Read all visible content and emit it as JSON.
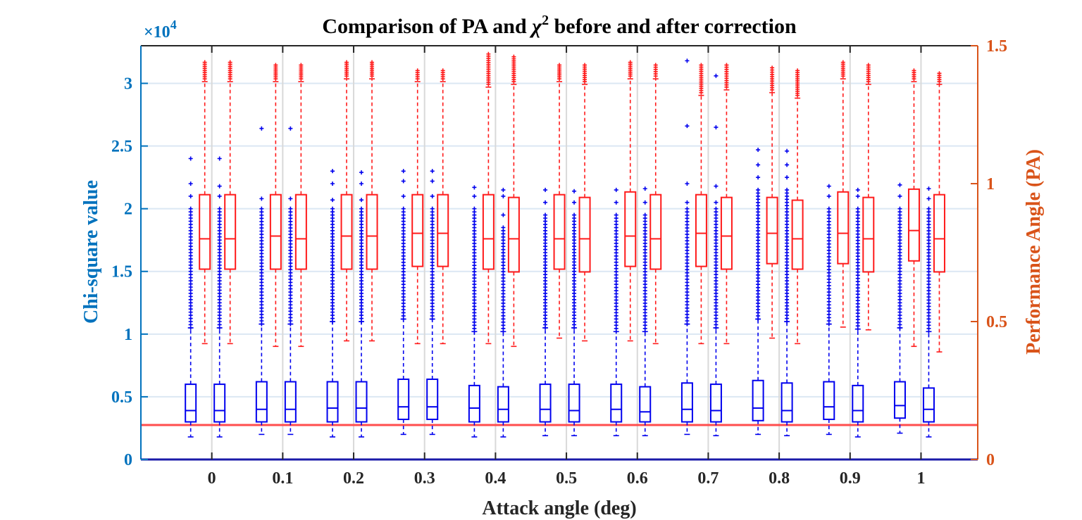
{
  "chart_data": {
    "type": "box",
    "title": "Comparison of PA and χ² before and after correction",
    "title_parts": {
      "main": "Comparison of PA and ",
      "symbol": "χ",
      "superscript": "2",
      "rest": " before and after correction"
    },
    "xlabel": "Attack angle (deg)",
    "ylabel_left": "Chi-square value",
    "ylabel_right": "Performance Angle (PA)",
    "left_exponent": "×10",
    "left_exponent_power": "4",
    "categories": [
      "0",
      "0.1",
      "0.2",
      "0.3",
      "0.4",
      "0.5",
      "0.6",
      "0.7",
      "0.8",
      "0.9",
      "1"
    ],
    "x_values": [
      0,
      0.1,
      0.2,
      0.3,
      0.4,
      0.5,
      0.6,
      0.7,
      0.8,
      0.9,
      1
    ],
    "xlim": [
      -0.1,
      1.08
    ],
    "ylim_left": [
      0,
      3.3
    ],
    "ylim_right": [
      0,
      1.5
    ],
    "left_ticks": [
      0,
      0.5,
      1,
      1.5,
      2,
      2.5,
      3
    ],
    "left_tick_labels": [
      "0",
      "0.5",
      "1",
      "1.5",
      "2",
      "2.5",
      "3"
    ],
    "right_ticks": [
      0,
      0.5,
      1,
      1.5
    ],
    "right_tick_labels": [
      "0",
      "0.5",
      "1",
      "1.5"
    ],
    "grid": true,
    "colors": {
      "chi": "#0000ee",
      "pa": "#ff1a1a",
      "left_axis": "#0072bd",
      "right_axis": "#d95319",
      "threshold": "#ff4d4d",
      "grid": "#dbe7f3"
    },
    "threshold_pa": 0.125,
    "chi_series": {
      "name": "Chi-square value",
      "boxes": [
        {
          "x": 0,
          "group": "before",
          "q1": 0.3,
          "med": 0.39,
          "q3": 0.6,
          "wlo": 0.18,
          "whi": 1.05,
          "out_dense": [
            1.05,
            2.0
          ],
          "out_sparse": [
            2.1,
            2.2,
            2.4
          ]
        },
        {
          "x": 0,
          "group": "after",
          "q1": 0.3,
          "med": 0.39,
          "q3": 0.6,
          "wlo": 0.18,
          "whi": 1.05,
          "out_dense": [
            1.05,
            2.0
          ],
          "out_sparse": [
            2.1,
            2.18,
            2.4
          ]
        },
        {
          "x": 0.1,
          "group": "before",
          "q1": 0.3,
          "med": 0.4,
          "q3": 0.62,
          "wlo": 0.2,
          "whi": 1.08,
          "out_dense": [
            1.08,
            2.0
          ],
          "out_sparse": [
            2.08,
            2.64
          ]
        },
        {
          "x": 0.1,
          "group": "after",
          "q1": 0.3,
          "med": 0.4,
          "q3": 0.62,
          "wlo": 0.2,
          "whi": 1.08,
          "out_dense": [
            1.08,
            2.0
          ],
          "out_sparse": [
            2.08,
            2.64
          ]
        },
        {
          "x": 0.2,
          "group": "before",
          "q1": 0.3,
          "med": 0.41,
          "q3": 0.62,
          "wlo": 0.18,
          "whi": 1.1,
          "out_dense": [
            1.1,
            2.0
          ],
          "out_sparse": [
            2.07,
            2.2,
            2.3
          ]
        },
        {
          "x": 0.2,
          "group": "after",
          "q1": 0.3,
          "med": 0.41,
          "q3": 0.62,
          "wlo": 0.18,
          "whi": 1.1,
          "out_dense": [
            1.1,
            2.0
          ],
          "out_sparse": [
            2.07,
            2.2,
            2.29
          ]
        },
        {
          "x": 0.3,
          "group": "before",
          "q1": 0.32,
          "med": 0.42,
          "q3": 0.64,
          "wlo": 0.2,
          "whi": 1.12,
          "out_dense": [
            1.12,
            2.0
          ],
          "out_sparse": [
            2.1,
            2.22,
            2.3
          ]
        },
        {
          "x": 0.3,
          "group": "after",
          "q1": 0.32,
          "med": 0.42,
          "q3": 0.64,
          "wlo": 0.2,
          "whi": 1.12,
          "out_dense": [
            1.12,
            2.0
          ],
          "out_sparse": [
            2.1,
            2.22,
            2.3
          ]
        },
        {
          "x": 0.4,
          "group": "before",
          "q1": 0.3,
          "med": 0.41,
          "q3": 0.59,
          "wlo": 0.18,
          "whi": 1.02,
          "out_dense": [
            1.02,
            2.0
          ],
          "out_sparse": [
            2.1,
            2.17
          ]
        },
        {
          "x": 0.4,
          "group": "after",
          "q1": 0.3,
          "med": 0.4,
          "q3": 0.58,
          "wlo": 0.18,
          "whi": 1.02,
          "out_dense": [
            1.02,
            1.85
          ],
          "out_sparse": [
            1.95,
            2.1,
            2.15
          ]
        },
        {
          "x": 0.5,
          "group": "before",
          "q1": 0.3,
          "med": 0.4,
          "q3": 0.6,
          "wlo": 0.19,
          "whi": 1.05,
          "out_dense": [
            1.05,
            1.95
          ],
          "out_sparse": [
            2.05,
            2.15
          ]
        },
        {
          "x": 0.5,
          "group": "after",
          "q1": 0.3,
          "med": 0.39,
          "q3": 0.6,
          "wlo": 0.19,
          "whi": 1.05,
          "out_dense": [
            1.05,
            1.95
          ],
          "out_sparse": [
            2.05,
            2.14
          ]
        },
        {
          "x": 0.6,
          "group": "before",
          "q1": 0.3,
          "med": 0.4,
          "q3": 0.6,
          "wlo": 0.19,
          "whi": 1.02,
          "out_dense": [
            1.02,
            1.95
          ],
          "out_sparse": [
            2.05,
            2.15
          ]
        },
        {
          "x": 0.6,
          "group": "after",
          "q1": 0.3,
          "med": 0.38,
          "q3": 0.58,
          "wlo": 0.19,
          "whi": 1.02,
          "out_dense": [
            1.02,
            1.95
          ],
          "out_sparse": [
            2.05,
            2.16
          ]
        },
        {
          "x": 0.7,
          "group": "before",
          "q1": 0.3,
          "med": 0.4,
          "q3": 0.61,
          "wlo": 0.2,
          "whi": 1.08,
          "out_dense": [
            1.08,
            2.0
          ],
          "out_sparse": [
            2.05,
            2.2,
            2.66,
            3.18
          ]
        },
        {
          "x": 0.7,
          "group": "after",
          "q1": 0.3,
          "med": 0.39,
          "q3": 0.6,
          "wlo": 0.19,
          "whi": 1.05,
          "out_dense": [
            1.05,
            2.0
          ],
          "out_sparse": [
            2.05,
            2.18,
            2.65,
            3.06
          ]
        },
        {
          "x": 0.8,
          "group": "before",
          "q1": 0.31,
          "med": 0.41,
          "q3": 0.63,
          "wlo": 0.2,
          "whi": 1.12,
          "out_dense": [
            1.12,
            2.15
          ],
          "out_sparse": [
            2.25,
            2.35,
            2.47
          ]
        },
        {
          "x": 0.8,
          "group": "after",
          "q1": 0.3,
          "med": 0.39,
          "q3": 0.61,
          "wlo": 0.19,
          "whi": 1.1,
          "out_dense": [
            1.1,
            2.15
          ],
          "out_sparse": [
            2.25,
            2.35,
            2.46
          ]
        },
        {
          "x": 0.9,
          "group": "before",
          "q1": 0.32,
          "med": 0.42,
          "q3": 0.62,
          "wlo": 0.2,
          "whi": 1.08,
          "out_dense": [
            1.08,
            2.0
          ],
          "out_sparse": [
            2.1,
            2.18
          ]
        },
        {
          "x": 0.9,
          "group": "after",
          "q1": 0.3,
          "med": 0.39,
          "q3": 0.59,
          "wlo": 0.18,
          "whi": 1.04,
          "out_dense": [
            1.04,
            2.0
          ],
          "out_sparse": [
            2.1,
            2.15
          ]
        },
        {
          "x": 1.0,
          "group": "before",
          "q1": 0.33,
          "med": 0.43,
          "q3": 0.62,
          "wlo": 0.21,
          "whi": 1.05,
          "out_dense": [
            1.05,
            2.0
          ],
          "out_sparse": [
            2.1,
            2.19
          ]
        },
        {
          "x": 1.0,
          "group": "after",
          "q1": 0.3,
          "med": 0.4,
          "q3": 0.57,
          "wlo": 0.18,
          "whi": 1.02,
          "out_dense": [
            1.02,
            2.0
          ],
          "out_sparse": [
            2.08,
            2.16
          ]
        }
      ]
    },
    "pa_series": {
      "name": "Performance Angle (PA)",
      "boxes": [
        {
          "x": 0,
          "group": "before",
          "q1": 0.69,
          "med": 0.8,
          "q3": 0.96,
          "wlo": 0.42,
          "whi": 1.37,
          "out_lo": 1.38,
          "out_hi": 1.44
        },
        {
          "x": 0,
          "group": "after",
          "q1": 0.69,
          "med": 0.8,
          "q3": 0.96,
          "wlo": 0.42,
          "whi": 1.37,
          "out_lo": 1.38,
          "out_hi": 1.44
        },
        {
          "x": 0.1,
          "group": "before",
          "q1": 0.69,
          "med": 0.81,
          "q3": 0.96,
          "wlo": 0.41,
          "whi": 1.37,
          "out_lo": 1.38,
          "out_hi": 1.43
        },
        {
          "x": 0.1,
          "group": "after",
          "q1": 0.69,
          "med": 0.8,
          "q3": 0.96,
          "wlo": 0.41,
          "whi": 1.37,
          "out_lo": 1.38,
          "out_hi": 1.43
        },
        {
          "x": 0.2,
          "group": "before",
          "q1": 0.69,
          "med": 0.81,
          "q3": 0.96,
          "wlo": 0.43,
          "whi": 1.38,
          "out_lo": 1.39,
          "out_hi": 1.44
        },
        {
          "x": 0.2,
          "group": "after",
          "q1": 0.69,
          "med": 0.81,
          "q3": 0.96,
          "wlo": 0.43,
          "whi": 1.38,
          "out_lo": 1.39,
          "out_hi": 1.44
        },
        {
          "x": 0.3,
          "group": "before",
          "q1": 0.7,
          "med": 0.82,
          "q3": 0.96,
          "wlo": 0.42,
          "whi": 1.37,
          "out_lo": 1.38,
          "out_hi": 1.41
        },
        {
          "x": 0.3,
          "group": "after",
          "q1": 0.7,
          "med": 0.82,
          "q3": 0.96,
          "wlo": 0.42,
          "whi": 1.37,
          "out_lo": 1.38,
          "out_hi": 1.41
        },
        {
          "x": 0.4,
          "group": "before",
          "q1": 0.69,
          "med": 0.8,
          "q3": 0.96,
          "wlo": 0.42,
          "whi": 1.35,
          "out_lo": 1.36,
          "out_hi": 1.47
        },
        {
          "x": 0.4,
          "group": "after",
          "q1": 0.68,
          "med": 0.8,
          "q3": 0.95,
          "wlo": 0.41,
          "whi": 1.36,
          "out_lo": 1.37,
          "out_hi": 1.46
        },
        {
          "x": 0.5,
          "group": "before",
          "q1": 0.69,
          "med": 0.8,
          "q3": 0.96,
          "wlo": 0.44,
          "whi": 1.37,
          "out_lo": 1.38,
          "out_hi": 1.43
        },
        {
          "x": 0.5,
          "group": "after",
          "q1": 0.68,
          "med": 0.8,
          "q3": 0.95,
          "wlo": 0.43,
          "whi": 1.36,
          "out_lo": 1.37,
          "out_hi": 1.43
        },
        {
          "x": 0.6,
          "group": "before",
          "q1": 0.7,
          "med": 0.81,
          "q3": 0.97,
          "wlo": 0.43,
          "whi": 1.38,
          "out_lo": 1.39,
          "out_hi": 1.44
        },
        {
          "x": 0.6,
          "group": "after",
          "q1": 0.69,
          "med": 0.8,
          "q3": 0.96,
          "wlo": 0.42,
          "whi": 1.38,
          "out_lo": 1.39,
          "out_hi": 1.43
        },
        {
          "x": 0.7,
          "group": "before",
          "q1": 0.7,
          "med": 0.82,
          "q3": 0.96,
          "wlo": 0.42,
          "whi": 1.32,
          "out_lo": 1.33,
          "out_hi": 1.43
        },
        {
          "x": 0.7,
          "group": "after",
          "q1": 0.69,
          "med": 0.81,
          "q3": 0.95,
          "wlo": 0.42,
          "whi": 1.34,
          "out_lo": 1.35,
          "out_hi": 1.43
        },
        {
          "x": 0.8,
          "group": "before",
          "q1": 0.71,
          "med": 0.82,
          "q3": 0.95,
          "wlo": 0.44,
          "whi": 1.33,
          "out_lo": 1.34,
          "out_hi": 1.42
        },
        {
          "x": 0.8,
          "group": "after",
          "q1": 0.69,
          "med": 0.8,
          "q3": 0.94,
          "wlo": 0.42,
          "whi": 1.31,
          "out_lo": 1.32,
          "out_hi": 1.41
        },
        {
          "x": 0.9,
          "group": "before",
          "q1": 0.71,
          "med": 0.82,
          "q3": 0.97,
          "wlo": 0.48,
          "whi": 1.38,
          "out_lo": 1.39,
          "out_hi": 1.44
        },
        {
          "x": 0.9,
          "group": "after",
          "q1": 0.68,
          "med": 0.8,
          "q3": 0.95,
          "wlo": 0.47,
          "whi": 1.36,
          "out_lo": 1.37,
          "out_hi": 1.43
        },
        {
          "x": 1.0,
          "group": "before",
          "q1": 0.72,
          "med": 0.83,
          "q3": 0.98,
          "wlo": 0.41,
          "whi": 1.37,
          "out_lo": 1.38,
          "out_hi": 1.41
        },
        {
          "x": 1.0,
          "group": "after",
          "q1": 0.68,
          "med": 0.8,
          "q3": 0.96,
          "wlo": 0.39,
          "whi": 1.36,
          "out_lo": 1.37,
          "out_hi": 1.4
        }
      ]
    }
  }
}
